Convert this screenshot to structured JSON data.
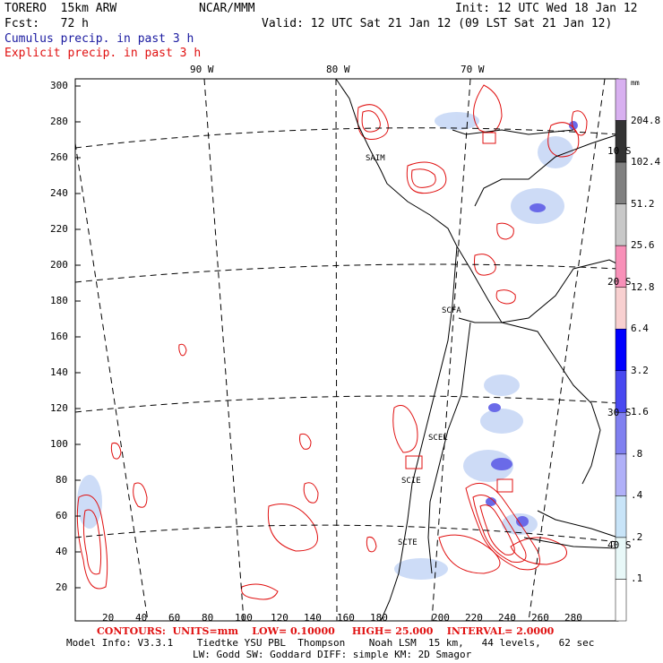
{
  "header": {
    "model": "TORERO  15km ARW",
    "center": "NCAR/MMM",
    "init": "Init: 12 UTC Wed 18 Jan 12",
    "fcst": "Fcst:   72 h",
    "valid": "Valid: 12 UTC Sat 21 Jan 12 (09 LST Sat 21 Jan 12)",
    "field1": "Cumulus precip. in past 3 h",
    "field2": "Explicit precip. in past 3 h"
  },
  "colors": {
    "field1": "#1a1aa0",
    "field2": "#e01010",
    "contour": "#e01010",
    "cumulus": "#6a6ae8"
  },
  "lon_labels": [
    "90 W",
    "80 W",
    "70 W"
  ],
  "lat_labels": [
    "10 S",
    "20 S",
    "30 S",
    "40 S"
  ],
  "y_ticks": [
    "300",
    "280",
    "260",
    "240",
    "220",
    "200",
    "180",
    "160",
    "140",
    "120",
    "100",
    "80",
    "60",
    "40",
    "20"
  ],
  "x_ticks": [
    "20",
    "40",
    "60",
    "80",
    "100",
    "120",
    "140",
    "160",
    "180",
    "200",
    "220",
    "240",
    "260",
    "280"
  ],
  "stations": [
    "SAIM",
    "SCFA",
    "SCEL",
    "SCIE",
    "SCTE"
  ],
  "colorbar": {
    "unit": "mm",
    "levels": [
      "204.8",
      "102.4",
      "51.2",
      "25.6",
      "12.8",
      "6.4",
      "3.2",
      "1.6",
      ".8",
      ".4",
      ".2",
      ".1"
    ],
    "colors": [
      "#d8b0f0",
      "#333333",
      "#808080",
      "#c8c8c8",
      "#f890b8",
      "#f8d0d0",
      "#0000ff",
      "#4848f0",
      "#8080f0",
      "#b0b0f8",
      "#c8e4f8",
      "#e8f8f8",
      "#ffffff"
    ]
  },
  "footer": {
    "contours": "CONTOURS:  UNITS=mm    LOW= 0.10000     HIGH= 25.000    INTERVAL= 2.0000",
    "model_info": "Model Info: V3.3.1    Tiedtke YSU PBL  Thompson    Noah LSM  15 km,   44 levels,   62 sec",
    "physics": "LW: Godd SW: Goddard DIFF: simple KM: 2D Smagor"
  }
}
